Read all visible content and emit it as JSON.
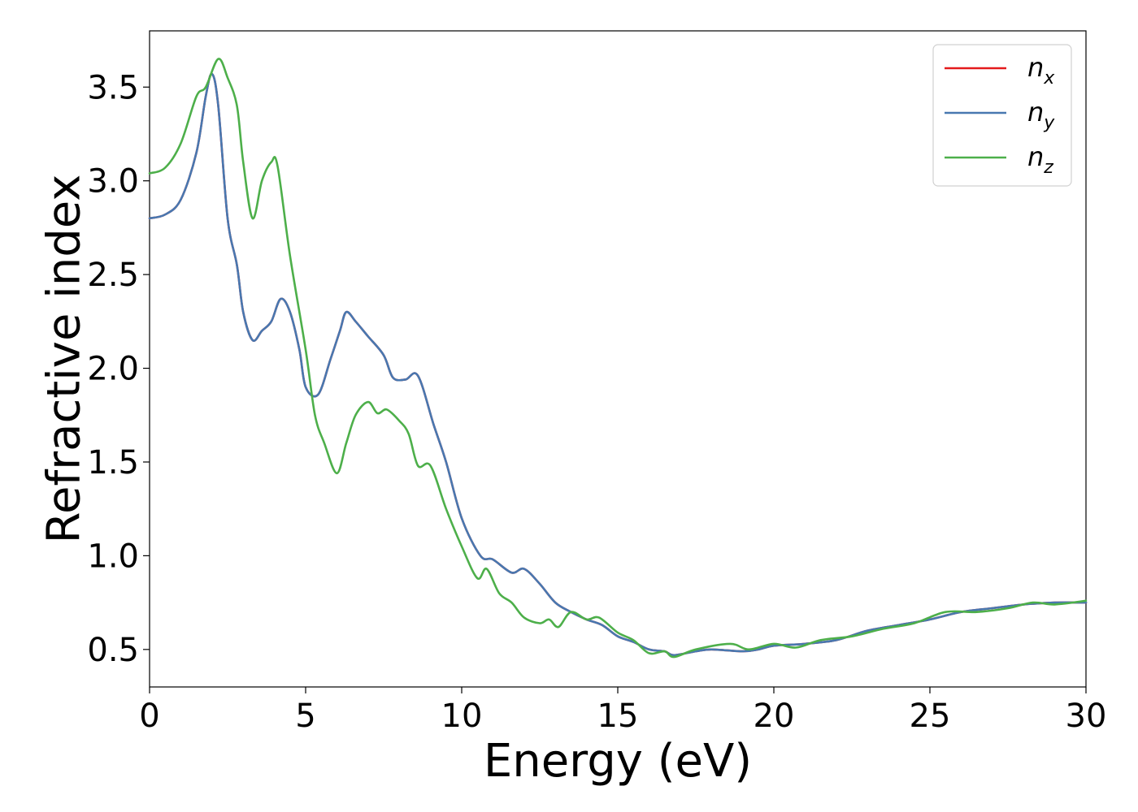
{
  "chart_data": {
    "type": "line",
    "title": "",
    "xlabel": "Energy (eV)",
    "ylabel": "Refractive index",
    "xlim": [
      0,
      30
    ],
    "ylim": [
      0.3,
      3.8
    ],
    "grid": false,
    "legend_position": "top-right",
    "x_ticks": [
      {
        "value": 0,
        "label": "0"
      },
      {
        "value": 5,
        "label": "5"
      },
      {
        "value": 10,
        "label": "10"
      },
      {
        "value": 15,
        "label": "15"
      },
      {
        "value": 20,
        "label": "20"
      },
      {
        "value": 25,
        "label": "25"
      },
      {
        "value": 30,
        "label": "30"
      }
    ],
    "y_ticks": [
      {
        "value": 0.5,
        "label": "0.5"
      },
      {
        "value": 1.0,
        "label": "1.0"
      },
      {
        "value": 1.5,
        "label": "1.5"
      },
      {
        "value": 2.0,
        "label": "2.0"
      },
      {
        "value": 2.5,
        "label": "2.5"
      },
      {
        "value": 3.0,
        "label": "3.0"
      },
      {
        "value": 3.5,
        "label": "3.5"
      }
    ],
    "series": [
      {
        "name": "n_x",
        "legend_base": "n",
        "legend_sub": "x",
        "color": "#e41a1c",
        "points": [
          [
            0,
            2.8
          ],
          [
            0.5,
            2.82
          ],
          [
            1,
            2.9
          ],
          [
            1.5,
            3.15
          ],
          [
            1.8,
            3.45
          ],
          [
            2,
            3.57
          ],
          [
            2.2,
            3.4
          ],
          [
            2.5,
            2.8
          ],
          [
            2.8,
            2.55
          ],
          [
            3,
            2.3
          ],
          [
            3.3,
            2.15
          ],
          [
            3.6,
            2.2
          ],
          [
            3.9,
            2.25
          ],
          [
            4.2,
            2.37
          ],
          [
            4.5,
            2.3
          ],
          [
            4.8,
            2.1
          ],
          [
            5,
            1.9
          ],
          [
            5.4,
            1.86
          ],
          [
            5.8,
            2.05
          ],
          [
            6.1,
            2.2
          ],
          [
            6.3,
            2.3
          ],
          [
            6.6,
            2.25
          ],
          [
            7,
            2.17
          ],
          [
            7.5,
            2.07
          ],
          [
            7.8,
            1.95
          ],
          [
            8.2,
            1.94
          ],
          [
            8.6,
            1.96
          ],
          [
            9.1,
            1.7
          ],
          [
            9.5,
            1.5
          ],
          [
            10,
            1.2
          ],
          [
            10.6,
            1.0
          ],
          [
            11,
            0.98
          ],
          [
            11.6,
            0.91
          ],
          [
            12,
            0.93
          ],
          [
            12.5,
            0.85
          ],
          [
            13,
            0.75
          ],
          [
            13.5,
            0.7
          ],
          [
            14,
            0.66
          ],
          [
            14.5,
            0.63
          ],
          [
            15,
            0.57
          ],
          [
            15.5,
            0.54
          ],
          [
            16,
            0.5
          ],
          [
            16.5,
            0.49
          ],
          [
            16.8,
            0.47
          ],
          [
            17.5,
            0.49
          ],
          [
            18,
            0.5
          ],
          [
            19,
            0.49
          ],
          [
            19.5,
            0.5
          ],
          [
            20,
            0.52
          ],
          [
            21,
            0.53
          ],
          [
            22,
            0.55
          ],
          [
            23,
            0.6
          ],
          [
            24,
            0.63
          ],
          [
            25,
            0.66
          ],
          [
            26,
            0.7
          ],
          [
            27,
            0.72
          ],
          [
            28,
            0.74
          ],
          [
            29,
            0.75
          ],
          [
            30,
            0.75
          ]
        ]
      },
      {
        "name": "n_y",
        "legend_base": "n",
        "legend_sub": "y",
        "color": "#4878b0",
        "points": [
          [
            0,
            2.8
          ],
          [
            0.5,
            2.82
          ],
          [
            1,
            2.9
          ],
          [
            1.5,
            3.15
          ],
          [
            1.8,
            3.45
          ],
          [
            2,
            3.57
          ],
          [
            2.2,
            3.4
          ],
          [
            2.5,
            2.8
          ],
          [
            2.8,
            2.55
          ],
          [
            3,
            2.3
          ],
          [
            3.3,
            2.15
          ],
          [
            3.6,
            2.2
          ],
          [
            3.9,
            2.25
          ],
          [
            4.2,
            2.37
          ],
          [
            4.5,
            2.3
          ],
          [
            4.8,
            2.1
          ],
          [
            5,
            1.9
          ],
          [
            5.4,
            1.86
          ],
          [
            5.8,
            2.05
          ],
          [
            6.1,
            2.2
          ],
          [
            6.3,
            2.3
          ],
          [
            6.6,
            2.25
          ],
          [
            7,
            2.17
          ],
          [
            7.5,
            2.07
          ],
          [
            7.8,
            1.95
          ],
          [
            8.2,
            1.94
          ],
          [
            8.6,
            1.96
          ],
          [
            9.1,
            1.7
          ],
          [
            9.5,
            1.5
          ],
          [
            10,
            1.2
          ],
          [
            10.6,
            1.0
          ],
          [
            11,
            0.98
          ],
          [
            11.6,
            0.91
          ],
          [
            12,
            0.93
          ],
          [
            12.5,
            0.85
          ],
          [
            13,
            0.75
          ],
          [
            13.5,
            0.7
          ],
          [
            14,
            0.66
          ],
          [
            14.5,
            0.63
          ],
          [
            15,
            0.57
          ],
          [
            15.5,
            0.54
          ],
          [
            16,
            0.5
          ],
          [
            16.5,
            0.49
          ],
          [
            16.8,
            0.47
          ],
          [
            17.5,
            0.49
          ],
          [
            18,
            0.5
          ],
          [
            19,
            0.49
          ],
          [
            19.5,
            0.5
          ],
          [
            20,
            0.52
          ],
          [
            21,
            0.53
          ],
          [
            22,
            0.55
          ],
          [
            23,
            0.6
          ],
          [
            24,
            0.63
          ],
          [
            25,
            0.66
          ],
          [
            26,
            0.7
          ],
          [
            27,
            0.72
          ],
          [
            28,
            0.74
          ],
          [
            29,
            0.75
          ],
          [
            30,
            0.75
          ]
        ]
      },
      {
        "name": "n_z",
        "legend_base": "n",
        "legend_sub": "z",
        "color": "#4daf4a",
        "points": [
          [
            0,
            3.04
          ],
          [
            0.5,
            3.07
          ],
          [
            1,
            3.2
          ],
          [
            1.5,
            3.45
          ],
          [
            1.8,
            3.5
          ],
          [
            2.2,
            3.65
          ],
          [
            2.5,
            3.55
          ],
          [
            2.8,
            3.4
          ],
          [
            3,
            3.1
          ],
          [
            3.3,
            2.8
          ],
          [
            3.6,
            3.0
          ],
          [
            3.9,
            3.1
          ],
          [
            4.1,
            3.08
          ],
          [
            4.5,
            2.6
          ],
          [
            5,
            2.1
          ],
          [
            5.3,
            1.75
          ],
          [
            5.6,
            1.6
          ],
          [
            6,
            1.44
          ],
          [
            6.3,
            1.6
          ],
          [
            6.6,
            1.75
          ],
          [
            7,
            1.82
          ],
          [
            7.3,
            1.76
          ],
          [
            7.6,
            1.78
          ],
          [
            8,
            1.72
          ],
          [
            8.3,
            1.65
          ],
          [
            8.6,
            1.48
          ],
          [
            9,
            1.48
          ],
          [
            9.5,
            1.25
          ],
          [
            10,
            1.05
          ],
          [
            10.5,
            0.88
          ],
          [
            10.8,
            0.93
          ],
          [
            11.2,
            0.8
          ],
          [
            11.6,
            0.75
          ],
          [
            12,
            0.67
          ],
          [
            12.5,
            0.64
          ],
          [
            12.8,
            0.66
          ],
          [
            13.1,
            0.62
          ],
          [
            13.5,
            0.7
          ],
          [
            14,
            0.66
          ],
          [
            14.4,
            0.67
          ],
          [
            15,
            0.59
          ],
          [
            15.5,
            0.55
          ],
          [
            16,
            0.48
          ],
          [
            16.5,
            0.49
          ],
          [
            16.8,
            0.46
          ],
          [
            17.5,
            0.5
          ],
          [
            18.6,
            0.53
          ],
          [
            19.2,
            0.5
          ],
          [
            20,
            0.53
          ],
          [
            20.7,
            0.51
          ],
          [
            21.5,
            0.55
          ],
          [
            22.5,
            0.57
          ],
          [
            23.5,
            0.61
          ],
          [
            24.5,
            0.64
          ],
          [
            25.5,
            0.7
          ],
          [
            26.5,
            0.7
          ],
          [
            27.5,
            0.72
          ],
          [
            28.3,
            0.75
          ],
          [
            29,
            0.74
          ],
          [
            30,
            0.76
          ]
        ]
      }
    ]
  }
}
